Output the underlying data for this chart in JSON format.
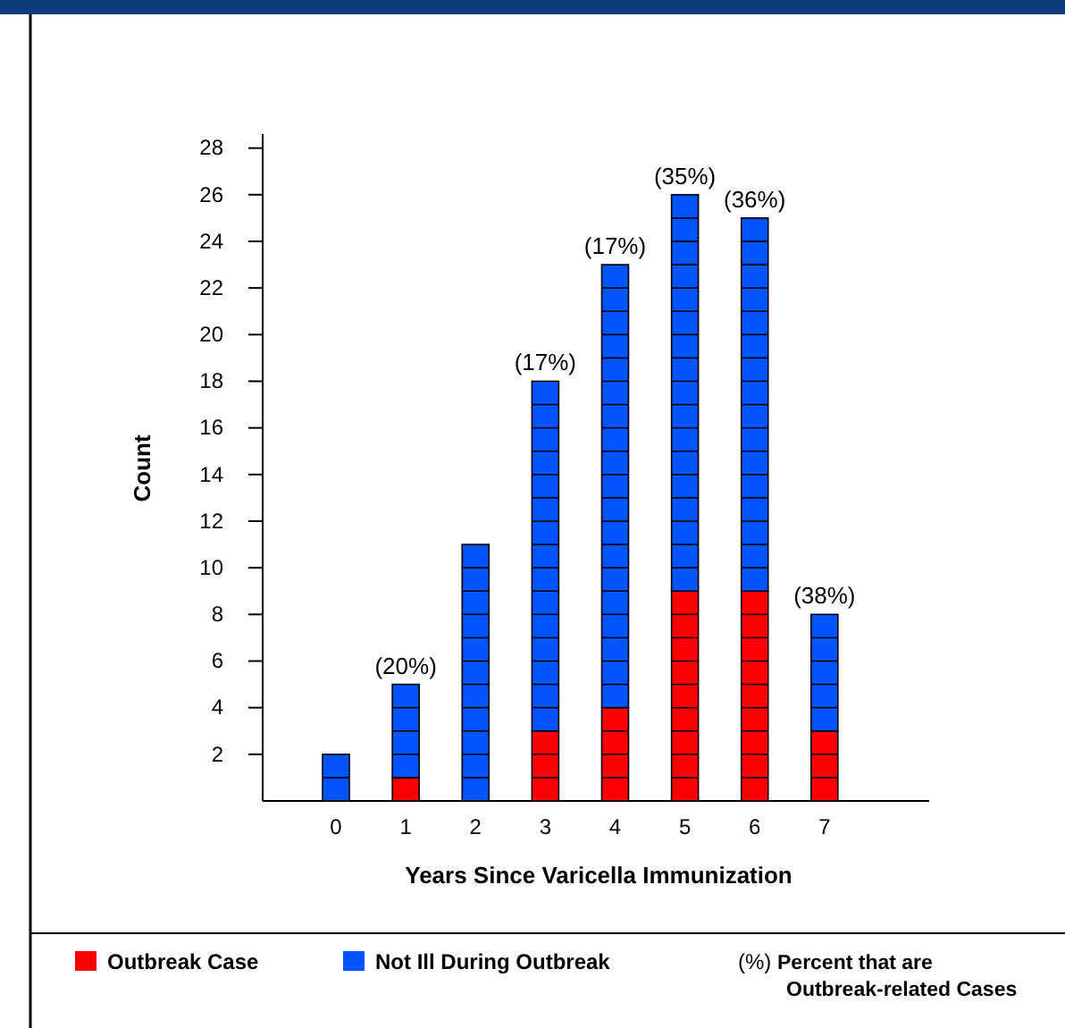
{
  "chart_data": {
    "type": "bar",
    "stacked": true,
    "xlabel": "Years Since Varicella Immunization",
    "ylabel": "Count",
    "categories": [
      "0",
      "1",
      "2",
      "3",
      "4",
      "5",
      "6",
      "7"
    ],
    "series": [
      {
        "name": "Outbreak Case",
        "color": "#ff0000",
        "values": [
          0,
          1,
          0,
          3,
          4,
          9,
          9,
          3
        ]
      },
      {
        "name": "Not Ill During Outbreak",
        "color": "#0055ff",
        "values": [
          2,
          4,
          11,
          15,
          19,
          17,
          16,
          5
        ]
      }
    ],
    "ylim": [
      0,
      28.6
    ],
    "yticks": [
      2,
      4,
      6,
      8,
      10,
      12,
      14,
      16,
      18,
      20,
      22,
      24,
      26,
      28
    ],
    "grid": false,
    "legend": "bottom",
    "annotations": [
      {
        "text": "(20%)",
        "x": "1",
        "y": 5
      },
      {
        "text": "(17%)",
        "x": "3",
        "y": 18
      },
      {
        "text": "(17%)",
        "x": "4",
        "y": 23
      },
      {
        "text": "(35%)",
        "x": "5",
        "y": 26
      },
      {
        "text": "(36%)",
        "x": "6",
        "y": 25
      },
      {
        "text": "(38%)",
        "x": "7",
        "y": 8
      },
      "(%) Percent that are Outbreak-related Cases"
    ]
  }
}
